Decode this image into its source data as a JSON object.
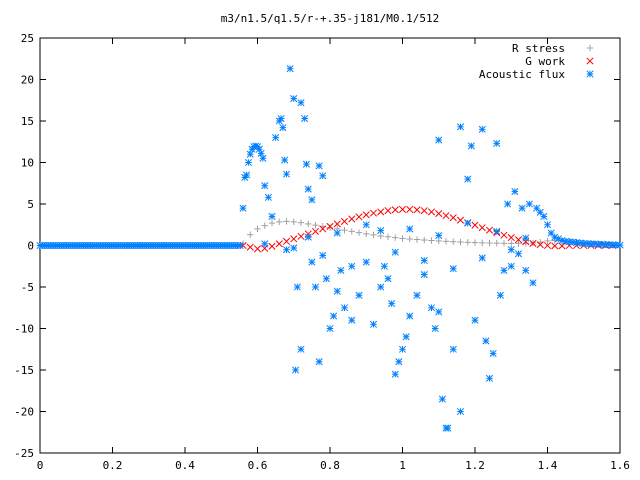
{
  "chart_data": {
    "type": "scatter",
    "title": "m3/n1.5/q1.5/r-+.35-j181/M0.1/512",
    "xlabel": "",
    "ylabel": "",
    "xlim": [
      0,
      1.6
    ],
    "ylim": [
      -25,
      25
    ],
    "x_ticks": [
      "0",
      "0.2",
      "0.4",
      "0.6",
      "0.8",
      "1",
      "1.2",
      "1.4",
      "1.6"
    ],
    "y_ticks": [
      "25",
      "20",
      "15",
      "10",
      "5",
      "0",
      "-5",
      "-10",
      "-15",
      "-20",
      "-25"
    ],
    "grid": false,
    "legend_position": "top-right",
    "series": [
      {
        "name": "R stress",
        "marker": "plus",
        "color": "#a0a0a0",
        "points": [
          [
            0.56,
            0.2
          ],
          [
            0.58,
            1.3
          ],
          [
            0.6,
            2.0
          ],
          [
            0.62,
            2.4
          ],
          [
            0.64,
            2.7
          ],
          [
            0.66,
            2.85
          ],
          [
            0.68,
            2.9
          ],
          [
            0.7,
            2.85
          ],
          [
            0.72,
            2.75
          ],
          [
            0.74,
            2.6
          ],
          [
            0.76,
            2.45
          ],
          [
            0.78,
            2.3
          ],
          [
            0.8,
            2.15
          ],
          [
            0.82,
            2.0
          ],
          [
            0.84,
            1.85
          ],
          [
            0.86,
            1.7
          ],
          [
            0.88,
            1.55
          ],
          [
            0.9,
            1.4
          ],
          [
            0.92,
            1.28
          ],
          [
            0.94,
            1.15
          ],
          [
            0.96,
            1.05
          ],
          [
            0.98,
            0.95
          ],
          [
            1.0,
            0.85
          ],
          [
            1.02,
            0.78
          ],
          [
            1.04,
            0.72
          ],
          [
            1.06,
            0.66
          ],
          [
            1.08,
            0.6
          ],
          [
            1.1,
            0.55
          ],
          [
            1.12,
            0.5
          ],
          [
            1.14,
            0.46
          ],
          [
            1.16,
            0.42
          ],
          [
            1.18,
            0.38
          ],
          [
            1.2,
            0.35
          ],
          [
            1.22,
            0.32
          ],
          [
            1.24,
            0.3
          ],
          [
            1.26,
            0.28
          ],
          [
            1.28,
            0.26
          ],
          [
            1.3,
            0.25
          ],
          [
            1.32,
            0.25
          ],
          [
            1.34,
            0.26
          ],
          [
            1.36,
            0.3
          ],
          [
            1.38,
            0.4
          ],
          [
            1.4,
            0.55
          ],
          [
            1.42,
            0.6
          ],
          [
            1.44,
            0.55
          ],
          [
            1.46,
            0.48
          ],
          [
            1.48,
            0.4
          ],
          [
            1.5,
            0.32
          ],
          [
            1.52,
            0.25
          ],
          [
            1.54,
            0.18
          ],
          [
            1.56,
            0.1
          ],
          [
            1.58,
            0.05
          ]
        ]
      },
      {
        "name": "G work",
        "marker": "cross",
        "color": "#ff0000",
        "points": [
          [
            0.56,
            0.0
          ],
          [
            0.58,
            -0.2
          ],
          [
            0.6,
            -0.4
          ],
          [
            0.62,
            -0.35
          ],
          [
            0.64,
            -0.1
          ],
          [
            0.66,
            0.2
          ],
          [
            0.68,
            0.5
          ],
          [
            0.7,
            0.8
          ],
          [
            0.72,
            1.1
          ],
          [
            0.74,
            1.4
          ],
          [
            0.76,
            1.7
          ],
          [
            0.78,
            2.0
          ],
          [
            0.8,
            2.3
          ],
          [
            0.82,
            2.6
          ],
          [
            0.84,
            2.9
          ],
          [
            0.86,
            3.2
          ],
          [
            0.88,
            3.45
          ],
          [
            0.9,
            3.7
          ],
          [
            0.92,
            3.9
          ],
          [
            0.94,
            4.05
          ],
          [
            0.96,
            4.2
          ],
          [
            0.98,
            4.3
          ],
          [
            1.0,
            4.35
          ],
          [
            1.02,
            4.35
          ],
          [
            1.04,
            4.3
          ],
          [
            1.06,
            4.2
          ],
          [
            1.08,
            4.05
          ],
          [
            1.1,
            3.85
          ],
          [
            1.12,
            3.6
          ],
          [
            1.14,
            3.35
          ],
          [
            1.16,
            3.05
          ],
          [
            1.18,
            2.75
          ],
          [
            1.2,
            2.45
          ],
          [
            1.22,
            2.15
          ],
          [
            1.24,
            1.85
          ],
          [
            1.26,
            1.55
          ],
          [
            1.28,
            1.25
          ],
          [
            1.3,
            0.95
          ],
          [
            1.32,
            0.7
          ],
          [
            1.34,
            0.45
          ],
          [
            1.36,
            0.25
          ],
          [
            1.38,
            0.1
          ],
          [
            1.4,
            0.0
          ],
          [
            1.42,
            -0.05
          ],
          [
            1.44,
            -0.05
          ],
          [
            1.46,
            0.0
          ],
          [
            1.48,
            0.0
          ],
          [
            1.5,
            0.0
          ],
          [
            1.52,
            0.0
          ],
          [
            1.54,
            0.0
          ],
          [
            1.56,
            0.0
          ],
          [
            1.58,
            0.0
          ]
        ]
      },
      {
        "name": "Acoustic flux",
        "marker": "star",
        "color": "#0080ff",
        "points": [
          [
            0.56,
            4.5
          ],
          [
            0.565,
            8.2
          ],
          [
            0.57,
            8.5
          ],
          [
            0.575,
            10.0
          ],
          [
            0.58,
            11.0
          ],
          [
            0.585,
            11.6
          ],
          [
            0.59,
            11.9
          ],
          [
            0.595,
            12.0
          ],
          [
            0.6,
            11.9
          ],
          [
            0.605,
            11.6
          ],
          [
            0.61,
            11.1
          ],
          [
            0.615,
            10.5
          ],
          [
            0.62,
            7.2
          ],
          [
            0.63,
            5.8
          ],
          [
            0.64,
            3.5
          ],
          [
            0.65,
            13.0
          ],
          [
            0.66,
            15.0
          ],
          [
            0.665,
            15.3
          ],
          [
            0.67,
            14.2
          ],
          [
            0.675,
            10.3
          ],
          [
            0.68,
            8.6
          ],
          [
            0.69,
            21.3
          ],
          [
            0.7,
            17.7
          ],
          [
            0.705,
            -15.0
          ],
          [
            0.71,
            -5.0
          ],
          [
            0.72,
            -12.5
          ],
          [
            0.72,
            17.2
          ],
          [
            0.73,
            15.3
          ],
          [
            0.735,
            9.8
          ],
          [
            0.74,
            6.8
          ],
          [
            0.75,
            5.5
          ],
          [
            0.75,
            -2.0
          ],
          [
            0.76,
            -5.0
          ],
          [
            0.77,
            -14.0
          ],
          [
            0.77,
            9.6
          ],
          [
            0.78,
            8.4
          ],
          [
            0.79,
            -4.0
          ],
          [
            0.8,
            -10.0
          ],
          [
            0.81,
            -8.5
          ],
          [
            0.82,
            -5.5
          ],
          [
            0.83,
            -3.0
          ],
          [
            0.84,
            -7.5
          ],
          [
            0.86,
            -9.0
          ],
          [
            0.88,
            -6.0
          ],
          [
            0.9,
            -2.0
          ],
          [
            0.92,
            -9.5
          ],
          [
            0.94,
            -5.0
          ],
          [
            0.95,
            -2.5
          ],
          [
            0.96,
            -4.0
          ],
          [
            0.97,
            -7.0
          ],
          [
            0.98,
            -15.5
          ],
          [
            0.99,
            -14.0
          ],
          [
            1.0,
            -12.5
          ],
          [
            1.01,
            -11.0
          ],
          [
            1.02,
            -8.5
          ],
          [
            1.04,
            -6.0
          ],
          [
            1.06,
            -3.5
          ],
          [
            1.08,
            -7.5
          ],
          [
            1.09,
            -10.0
          ],
          [
            1.1,
            -8.0
          ],
          [
            1.1,
            12.7
          ],
          [
            1.11,
            -18.5
          ],
          [
            1.12,
            -22.0
          ],
          [
            1.125,
            -22.0
          ],
          [
            1.14,
            -12.5
          ],
          [
            1.16,
            -20.0
          ],
          [
            1.16,
            14.3
          ],
          [
            1.18,
            8.0
          ],
          [
            1.19,
            12.0
          ],
          [
            1.2,
            -9.0
          ],
          [
            1.22,
            14.0
          ],
          [
            1.23,
            -11.5
          ],
          [
            1.24,
            -16.0
          ],
          [
            1.25,
            -13.0
          ],
          [
            1.26,
            12.3
          ],
          [
            1.27,
            -6.0
          ],
          [
            1.28,
            -3.0
          ],
          [
            1.29,
            5.0
          ],
          [
            1.3,
            -2.5
          ],
          [
            1.31,
            6.5
          ],
          [
            1.32,
            -1.0
          ],
          [
            1.33,
            4.5
          ],
          [
            1.34,
            -3.0
          ],
          [
            1.35,
            5.0
          ],
          [
            1.36,
            -4.5
          ],
          [
            1.37,
            4.5
          ],
          [
            1.38,
            4.0
          ],
          [
            1.39,
            3.5
          ],
          [
            1.4,
            2.5
          ],
          [
            1.41,
            1.5
          ],
          [
            1.42,
            1.0
          ],
          [
            1.43,
            0.8
          ],
          [
            1.44,
            0.6
          ],
          [
            1.45,
            0.5
          ],
          [
            1.46,
            0.45
          ],
          [
            1.47,
            0.4
          ],
          [
            1.48,
            0.35
          ],
          [
            1.49,
            0.3
          ],
          [
            1.5,
            0.25
          ],
          [
            1.51,
            0.22
          ],
          [
            1.52,
            0.2
          ],
          [
            1.53,
            0.18
          ],
          [
            1.54,
            0.16
          ],
          [
            1.55,
            0.14
          ],
          [
            1.56,
            0.12
          ],
          [
            1.57,
            0.1
          ],
          [
            1.58,
            0.08
          ],
          [
            1.59,
            0.06
          ],
          [
            1.6,
            0.05
          ],
          [
            0.62,
            0.2
          ],
          [
            0.68,
            -0.5
          ],
          [
            0.7,
            -0.3
          ],
          [
            0.74,
            1.0
          ],
          [
            0.78,
            -1.2
          ],
          [
            0.82,
            1.5
          ],
          [
            0.86,
            -2.5
          ],
          [
            0.9,
            2.5
          ],
          [
            0.94,
            1.8
          ],
          [
            0.98,
            -0.8
          ],
          [
            1.02,
            2.0
          ],
          [
            1.06,
            -1.8
          ],
          [
            1.1,
            1.2
          ],
          [
            1.14,
            -2.8
          ],
          [
            1.18,
            2.7
          ],
          [
            1.22,
            -1.5
          ],
          [
            1.26,
            1.7
          ],
          [
            1.3,
            -0.5
          ],
          [
            1.34,
            0.9
          ]
        ]
      }
    ]
  }
}
